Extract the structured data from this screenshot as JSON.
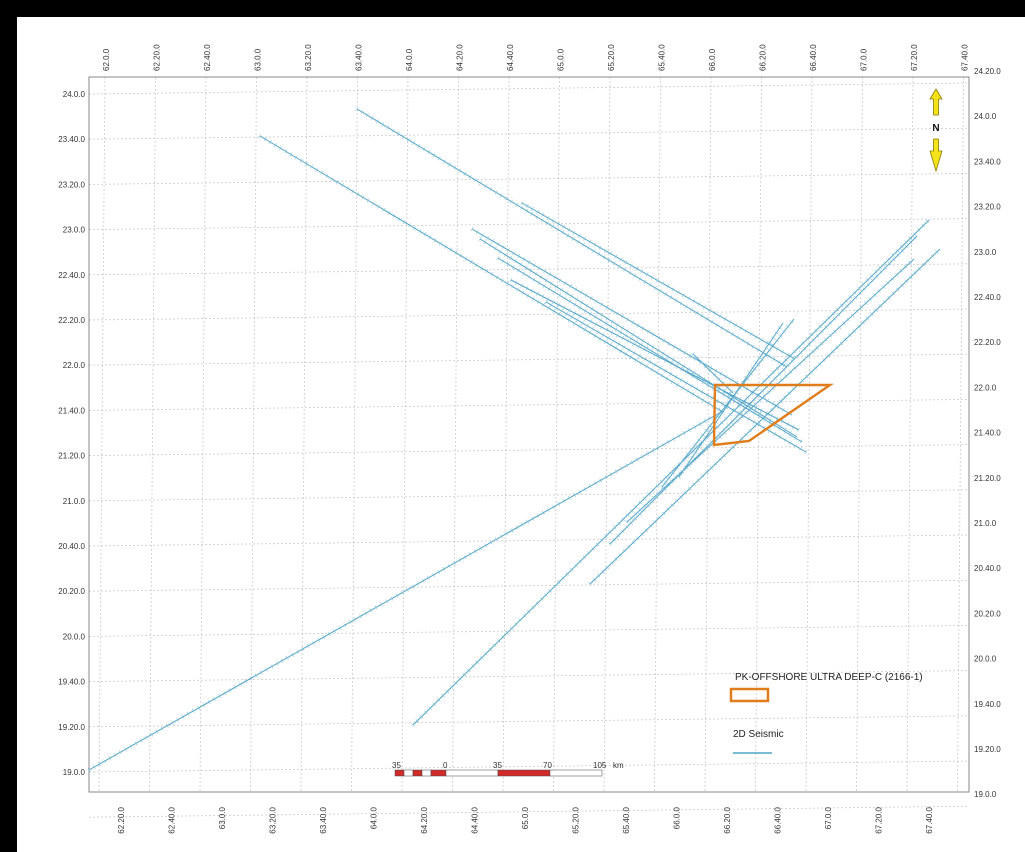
{
  "grid": {
    "top_labels": [
      "62.0.0",
      "62.20.0",
      "62.40.0",
      "63.0.0",
      "63.20.0",
      "63.40.0",
      "64.0.0",
      "64.20.0",
      "64.40.0",
      "65.0.0",
      "65.20.0",
      "65.40.0",
      "66.0.0",
      "66.20.0",
      "66.40.0",
      "67.0.0",
      "67.20.0",
      "67.40.0"
    ],
    "bottom_labels": [
      "62.20.0",
      "62.40.0",
      "63.0.0",
      "63.20.0",
      "63.40.0",
      "64.0.0",
      "64.20.0",
      "64.40.0",
      "65.0.0",
      "65.20.0",
      "65.40.0",
      "66.0.0",
      "66.20.0",
      "66.40.0",
      "67.0.0",
      "67.20.0",
      "67.40.0"
    ],
    "left_labels": [
      "24.0.0",
      "23.40.0",
      "23.20.0",
      "23.0.0",
      "22.40.0",
      "22.20.0",
      "22.0.0",
      "21.40.0",
      "21.20.0",
      "21.0.0",
      "20.40.0",
      "20.20.0",
      "20.0.0",
      "19.40.0",
      "19.20.0",
      "19.0.0"
    ],
    "right_labels": [
      "24.20.0",
      "24.0.0",
      "23.40.0",
      "23.20.0",
      "23.0.0",
      "22.40.0",
      "22.20.0",
      "22.0.0",
      "21.40.0",
      "21.20.0",
      "21.0.0",
      "20.40.0",
      "20.20.0",
      "20.0.0",
      "19.40.0",
      "19.20.0",
      "19.0.0"
    ]
  },
  "north_arrow": {
    "label": "N",
    "color": "#f2e31b"
  },
  "legend": {
    "block_label": "PK-OFFSHORE ULTRA DEEP-C (2166-1)",
    "block_color": "#e07c1a",
    "seismic_label": "2D Seismic",
    "seismic_color": "#4fa3c4"
  },
  "scale_bar": {
    "labels": [
      "35",
      "0",
      "35",
      "70",
      "105"
    ],
    "unit": "km",
    "color_dark": "#d12a2a"
  },
  "seismic_lines": [
    {
      "id": "L1",
      "points": [
        [
          72,
          753
        ],
        [
          706,
          394
        ]
      ]
    },
    {
      "id": "L2",
      "points": [
        [
          396,
          708
        ],
        [
          912,
          203
        ]
      ]
    },
    {
      "id": "L3",
      "points": [
        [
          573,
          567
        ],
        [
          923,
          232
        ]
      ]
    },
    {
      "id": "L4",
      "points": [
        [
          593,
          527
        ],
        [
          900,
          219
        ]
      ]
    },
    {
      "id": "L5",
      "points": [
        [
          610,
          505
        ],
        [
          897,
          242
        ]
      ]
    },
    {
      "id": "L6",
      "points": [
        [
          645,
          470
        ],
        [
          777,
          302
        ]
      ]
    },
    {
      "id": "L7",
      "points": [
        [
          662,
          460
        ],
        [
          766,
          306
        ]
      ]
    },
    {
      "id": "L8",
      "points": [
        [
          340,
          92
        ],
        [
          770,
          350
        ]
      ]
    },
    {
      "id": "L9",
      "points": [
        [
          243,
          119
        ],
        [
          706,
          395
        ]
      ]
    },
    {
      "id": "L10",
      "points": [
        [
          505,
          186
        ],
        [
          778,
          342
        ]
      ]
    },
    {
      "id": "L11",
      "points": [
        [
          455,
          212
        ],
        [
          775,
          398
        ]
      ]
    },
    {
      "id": "L12",
      "points": [
        [
          463,
          222
        ],
        [
          780,
          420
        ]
      ]
    },
    {
      "id": "L13",
      "points": [
        [
          481,
          241
        ],
        [
          785,
          425
        ]
      ]
    },
    {
      "id": "L14",
      "points": [
        [
          494,
          263
        ],
        [
          782,
          413
        ]
      ]
    },
    {
      "id": "L15",
      "points": [
        [
          529,
          285
        ],
        [
          789,
          435
        ]
      ]
    },
    {
      "id": "L16",
      "points": [
        [
          676,
          337
        ],
        [
          716,
          376
        ]
      ]
    }
  ],
  "block_polygon": [
    [
      698,
      368
    ],
    [
      813,
      368
    ],
    [
      732,
      424
    ],
    [
      697,
      428
    ]
  ]
}
